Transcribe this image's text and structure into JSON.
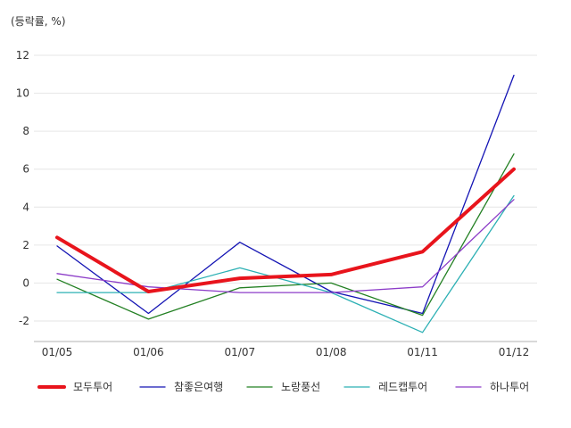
{
  "chart_data": {
    "type": "line",
    "title": "",
    "unit_label": "(등락률, %)",
    "xlabel": "",
    "ylabel": "",
    "categories": [
      "01/05",
      "01/06",
      "01/07",
      "01/08",
      "01/11",
      "01/12"
    ],
    "ylim": [
      -3,
      13
    ],
    "yticks": [
      -2,
      0,
      2,
      4,
      6,
      8,
      10,
      12
    ],
    "grid": true,
    "legend_position": "bottom",
    "series": [
      {
        "name": "모두투어",
        "color": "#e8141c",
        "values": [
          2.4,
          -0.45,
          0.25,
          0.45,
          1.65,
          6.0
        ]
      },
      {
        "name": "참좋은여행",
        "color": "#1414b4",
        "values": [
          1.95,
          -1.6,
          2.15,
          -0.45,
          -1.6,
          10.95
        ]
      },
      {
        "name": "노랑풍선",
        "color": "#238023",
        "values": [
          0.2,
          -1.9,
          -0.25,
          0.0,
          -1.7,
          6.8
        ]
      },
      {
        "name": "레드캡투어",
        "color": "#2cb0b4",
        "values": [
          -0.5,
          -0.5,
          0.8,
          -0.5,
          -2.6,
          4.6
        ]
      },
      {
        "name": "하나투어",
        "color": "#8c3cc8",
        "values": [
          0.5,
          -0.2,
          -0.5,
          -0.5,
          -0.2,
          4.4
        ]
      }
    ]
  }
}
